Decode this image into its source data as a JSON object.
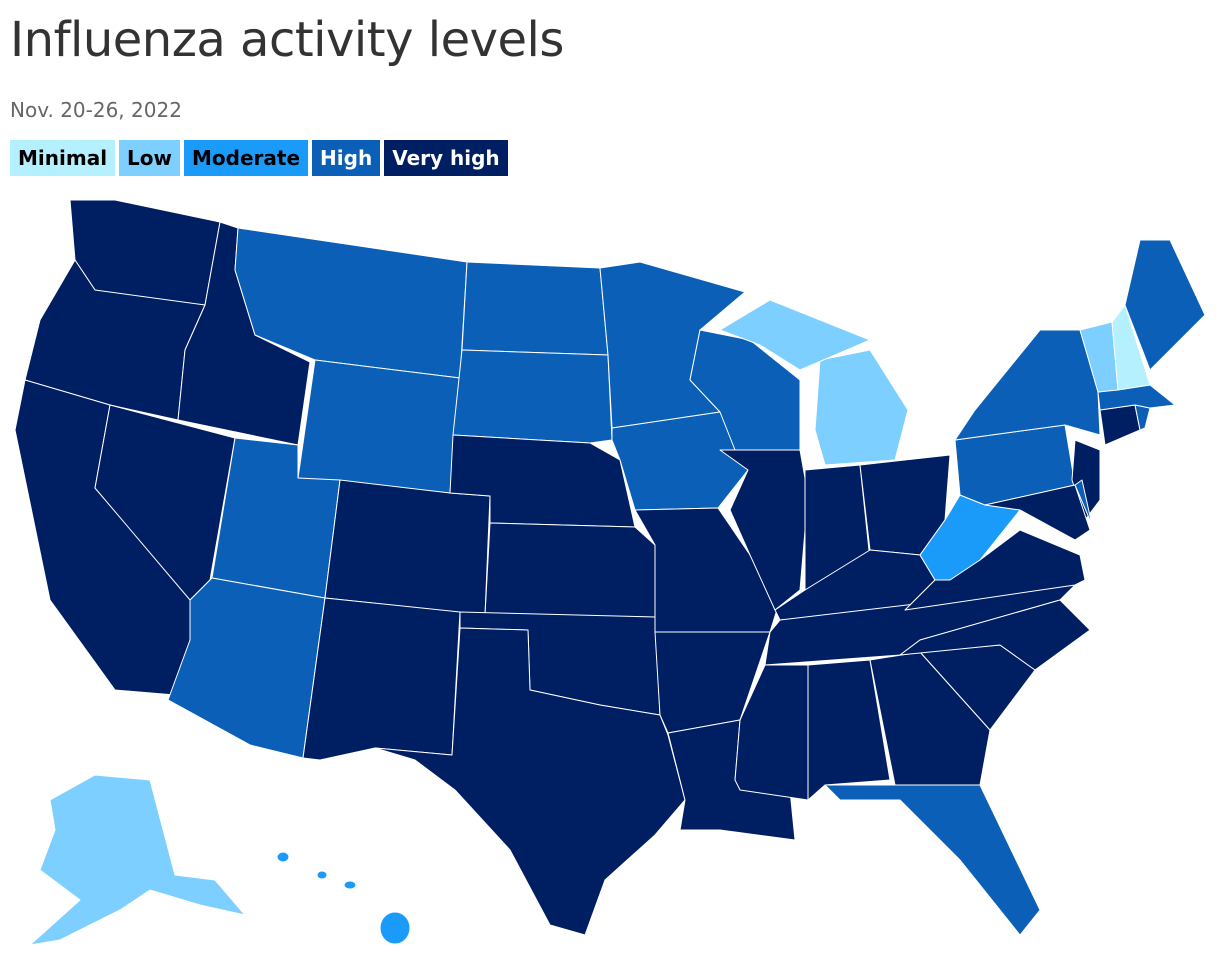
{
  "title": "Influenza activity levels",
  "subtitle": "Nov. 20-26, 2022",
  "legend": [
    {
      "label": "Minimal",
      "color": "#b5f0ff",
      "text_color": "#000000"
    },
    {
      "label": "Low",
      "color": "#7ccfff",
      "text_color": "#000000"
    },
    {
      "label": "Moderate",
      "color": "#1a9bfa",
      "text_color": "#000000"
    },
    {
      "label": "High",
      "color": "#0b5fb7",
      "text_color": "#ffffff"
    },
    {
      "label": "Very high",
      "color": "#001e62",
      "text_color": "#ffffff"
    }
  ]
}
